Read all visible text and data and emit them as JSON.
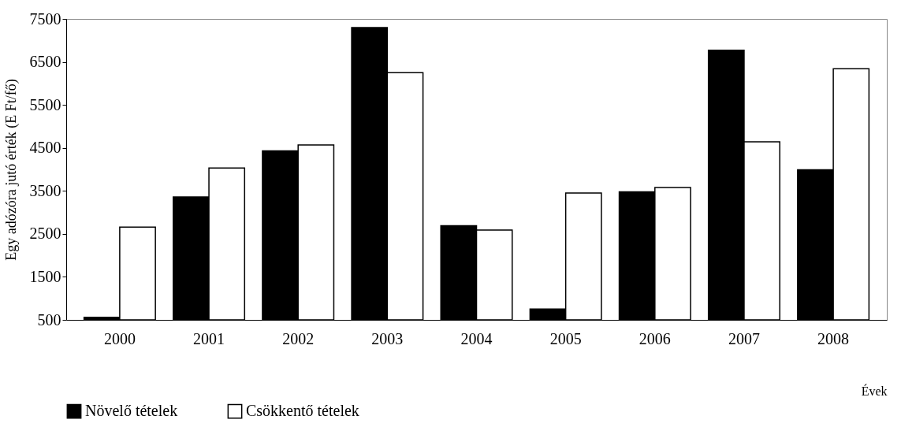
{
  "chart_data": {
    "type": "bar",
    "xlabel": "Évek",
    "ylabel": "Egy adózóra jutó érték (E Ft/fő)",
    "categories": [
      "2000",
      "2001",
      "2002",
      "2003",
      "2004",
      "2005",
      "2006",
      "2007",
      "2008"
    ],
    "series": [
      {
        "name": "Növelő tételek",
        "color": "#000000",
        "values": [
          560,
          3360,
          4430,
          7300,
          2690,
          750,
          3480,
          6770,
          3990
        ]
      },
      {
        "name": "Csökkentő tételek",
        "color": "#ffffff",
        "values": [
          2660,
          4030,
          4570,
          6250,
          2590,
          3450,
          3580,
          4640,
          6340
        ]
      }
    ],
    "ylim": [
      500,
      7500
    ],
    "yticks": [
      500,
      1500,
      2500,
      3500,
      4500,
      5500,
      6500,
      7500
    ],
    "grid": false,
    "legend": "bottom"
  }
}
